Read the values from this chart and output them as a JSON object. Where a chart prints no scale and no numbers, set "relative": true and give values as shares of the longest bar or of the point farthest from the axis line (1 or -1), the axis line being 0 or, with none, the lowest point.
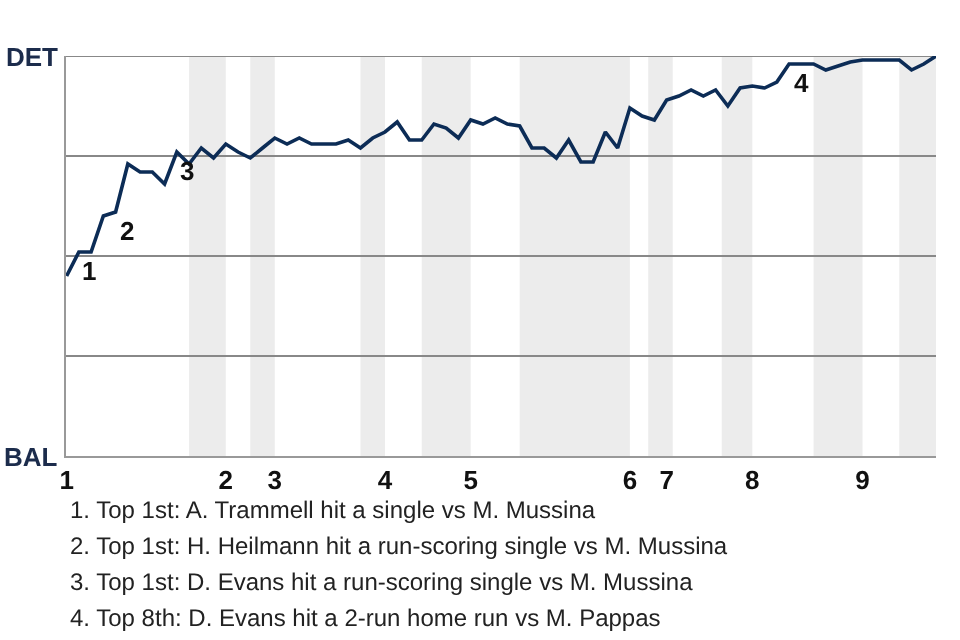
{
  "chart_data": {
    "type": "line",
    "relative": true,
    "categories": [
      "1",
      null,
      null,
      null,
      null,
      null,
      null,
      null,
      null,
      null,
      null,
      null,
      null,
      "2",
      null,
      null,
      null,
      "3",
      null,
      null,
      null,
      null,
      null,
      null,
      null,
      null,
      "4",
      null,
      null,
      null,
      null,
      null,
      null,
      "5",
      null,
      null,
      null,
      null,
      null,
      null,
      null,
      null,
      null,
      null,
      null,
      null,
      "6",
      null,
      null,
      "7",
      null,
      null,
      null,
      null,
      null,
      null,
      "8",
      null,
      null,
      null,
      null,
      null,
      null,
      null,
      null,
      "9",
      null,
      null,
      null,
      null,
      null,
      null
    ],
    "series": [
      {
        "color": "#0c2c56",
        "values": [
          0.45,
          0.51,
          0.51,
          0.6,
          0.61,
          0.73,
          0.71,
          0.71,
          0.68,
          0.76,
          0.73,
          0.77,
          0.745,
          0.78,
          0.76,
          0.745,
          0.77,
          0.795,
          0.78,
          0.795,
          0.78,
          0.78,
          0.78,
          0.79,
          0.77,
          0.795,
          0.81,
          0.835,
          0.79,
          0.79,
          0.83,
          0.82,
          0.795,
          0.84,
          0.83,
          0.845,
          0.83,
          0.825,
          0.77,
          0.77,
          0.745,
          0.79,
          0.735,
          0.735,
          0.81,
          0.77,
          0.87,
          0.85,
          0.84,
          0.89,
          0.9,
          0.915,
          0.9,
          0.915,
          0.875,
          0.92,
          0.925,
          0.92,
          0.935,
          0.98,
          0.98,
          0.98,
          0.965,
          0.975,
          0.985,
          0.99,
          0.99,
          0.99,
          0.99,
          0.965,
          0.98,
          1.0
        ]
      }
    ],
    "grid": false,
    "marker": "none",
    "line_style": "solid",
    "ref_lines": [
      {
        "axis": "y",
        "value": 0.25,
        "color": "#888888"
      },
      {
        "axis": "y",
        "value": 0.5,
        "color": "#888888"
      },
      {
        "axis": "y",
        "value": 0.75,
        "color": "#888888"
      },
      {
        "axis": "y",
        "value": 1.0,
        "color": "#888888"
      }
    ],
    "annotations": [
      {
        "text": "1",
        "y": 0.51
      },
      {
        "text": "2",
        "y": 0.61
      },
      {
        "text": "3",
        "y": 0.76
      },
      {
        "text": "4",
        "y": 0.98
      },
      "DET",
      "BAL",
      "1. Top 1st: A. Trammell hit a single vs M. Mussina",
      "2. Top 1st: H. Heilmann hit a run-scoring single vs M. Mussina",
      "3. Top 1st: D. Evans hit a run-scoring single vs M. Mussina",
      "4. Top 8th: D. Evans hit a 2-run home run vs M. Pappas"
    ]
  }
}
